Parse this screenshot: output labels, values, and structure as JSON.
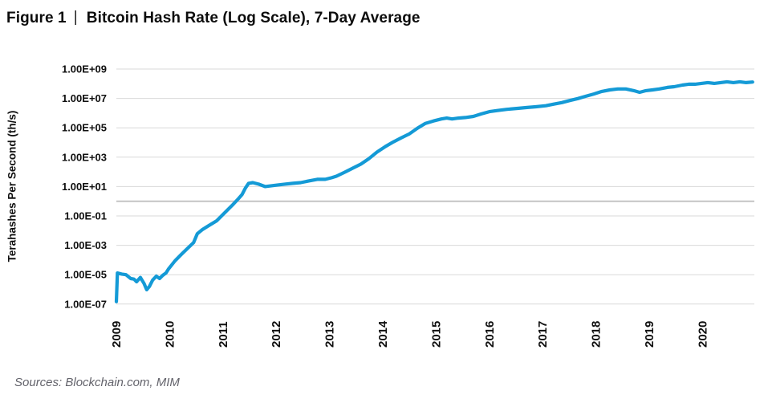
{
  "title": {
    "figure_label": "Figure 1",
    "separator": "|",
    "text": "Bitcoin Hash Rate (Log Scale), 7-Day Average"
  },
  "source": "Sources: Blockchain.com, MIM",
  "colors": {
    "line": "#149ad6",
    "gridline": "#d9d9d9",
    "gridline_emphasis": "#c4c4c4",
    "tick_text": "#0f0f0f"
  },
  "chart_data": {
    "type": "line",
    "title": "Bitcoin Hash Rate (Log Scale), 7-Day Average",
    "xlabel": "",
    "ylabel": "Terahashes Per Second (th/s)",
    "y_scale": "log",
    "ylim": [
      1e-07,
      1000000000.0
    ],
    "xlim": [
      2009,
      2021
    ],
    "grid": "horizontal",
    "legend": "none",
    "y_ticks": [
      "1.00E+09",
      "1.00E+07",
      "1.00E+05",
      "1.00E+03",
      "1.00E+01",
      "1.00E-01",
      "1.00E-03",
      "1.00E-05",
      "1.00E-07"
    ],
    "x_ticks": [
      "2009",
      "2010",
      "2011",
      "2012",
      "2013",
      "2014",
      "2015",
      "2016",
      "2017",
      "2018",
      "2019",
      "2020"
    ],
    "emphasis_gridline_value": 1,
    "series": [
      {
        "name": "Bitcoin hash rate, 7-day average (th/s)",
        "points": [
          [
            2009.0,
            1.45e-07
          ],
          [
            2009.02,
            1.3e-05
          ],
          [
            2009.1,
            1.1e-05
          ],
          [
            2009.18,
            1e-05
          ],
          [
            2009.27,
            5.5e-06
          ],
          [
            2009.33,
            5e-06
          ],
          [
            2009.38,
            3.3e-06
          ],
          [
            2009.45,
            6.5e-06
          ],
          [
            2009.52,
            2.5e-06
          ],
          [
            2009.57,
            9.5e-07
          ],
          [
            2009.62,
            1.6e-06
          ],
          [
            2009.68,
            4.3e-06
          ],
          [
            2009.75,
            8e-06
          ],
          [
            2009.81,
            5.5e-06
          ],
          [
            2009.87,
            9e-06
          ],
          [
            2009.93,
            1.3e-05
          ],
          [
            2009.98,
            2.5e-05
          ],
          [
            2010.1,
            8.7e-05
          ],
          [
            2010.22,
            0.00024
          ],
          [
            2010.34,
            0.00064
          ],
          [
            2010.45,
            0.00155
          ],
          [
            2010.52,
            0.0062
          ],
          [
            2010.61,
            0.0115
          ],
          [
            2010.73,
            0.0215
          ],
          [
            2010.88,
            0.046
          ],
          [
            2011.03,
            0.16
          ],
          [
            2011.18,
            0.56
          ],
          [
            2011.29,
            1.5
          ],
          [
            2011.36,
            2.9
          ],
          [
            2011.42,
            7.8
          ],
          [
            2011.48,
            16.5
          ],
          [
            2011.56,
            18.5
          ],
          [
            2011.67,
            14.5
          ],
          [
            2011.79,
            10.0
          ],
          [
            2011.91,
            11.3
          ],
          [
            2012.03,
            12.9
          ],
          [
            2012.16,
            14.5
          ],
          [
            2012.31,
            16.5
          ],
          [
            2012.46,
            18.5
          ],
          [
            2012.61,
            24
          ],
          [
            2012.77,
            31
          ],
          [
            2012.92,
            31
          ],
          [
            2013.04,
            40
          ],
          [
            2013.13,
            51
          ],
          [
            2013.29,
            96
          ],
          [
            2013.44,
            180
          ],
          [
            2013.59,
            340
          ],
          [
            2013.74,
            800
          ],
          [
            2013.89,
            2200
          ],
          [
            2014.05,
            5300
          ],
          [
            2014.2,
            11000.0
          ],
          [
            2014.35,
            21000.0
          ],
          [
            2014.5,
            39000.0
          ],
          [
            2014.65,
            94000.0
          ],
          [
            2014.8,
            200000.0
          ],
          [
            2014.95,
            290000.0
          ],
          [
            2015.1,
            400000.0
          ],
          [
            2015.2,
            460000.0
          ],
          [
            2015.3,
            400000.0
          ],
          [
            2015.42,
            460000.0
          ],
          [
            2015.55,
            500000.0
          ],
          [
            2015.7,
            600000.0
          ],
          [
            2015.85,
            880000.0
          ],
          [
            2016.0,
            1250000.0
          ],
          [
            2016.15,
            1500000.0
          ],
          [
            2016.33,
            1800000.0
          ],
          [
            2016.53,
            2100000.0
          ],
          [
            2016.71,
            2400000.0
          ],
          [
            2016.87,
            2700000.0
          ],
          [
            2017.06,
            3200000.0
          ],
          [
            2017.21,
            4100000.0
          ],
          [
            2017.36,
            5200000.0
          ],
          [
            2017.51,
            7200000.0
          ],
          [
            2017.66,
            9800000.0
          ],
          [
            2017.81,
            14000000.0
          ],
          [
            2017.96,
            20000000.0
          ],
          [
            2018.11,
            30000000.0
          ],
          [
            2018.26,
            38000000.0
          ],
          [
            2018.41,
            44000000.0
          ],
          [
            2018.56,
            44000000.0
          ],
          [
            2018.71,
            34000000.0
          ],
          [
            2018.82,
            26000000.0
          ],
          [
            2018.94,
            34000000.0
          ],
          [
            2019.06,
            38000000.0
          ],
          [
            2019.19,
            44000000.0
          ],
          [
            2019.34,
            56000000.0
          ],
          [
            2019.47,
            63000000.0
          ],
          [
            2019.62,
            81000000.0
          ],
          [
            2019.74,
            93000000.0
          ],
          [
            2019.86,
            93000000.0
          ],
          [
            2019.98,
            105000000.0
          ],
          [
            2020.1,
            120000000.0
          ],
          [
            2020.22,
            105000000.0
          ],
          [
            2020.34,
            120000000.0
          ],
          [
            2020.46,
            135000000.0
          ],
          [
            2020.58,
            120000000.0
          ],
          [
            2020.7,
            135000000.0
          ],
          [
            2020.82,
            120000000.0
          ],
          [
            2020.94,
            130000000.0
          ]
        ]
      }
    ]
  }
}
